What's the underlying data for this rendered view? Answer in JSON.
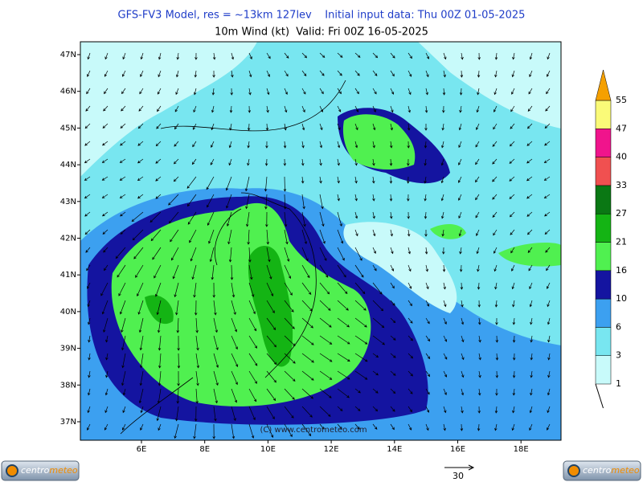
{
  "header": {
    "title": "GFS-FV3 Model, res = ~13km 127lev    Initial input data: Thu 00Z 01-05-2025",
    "subtitle": "10m Wind (kt)  Valid: Fri 00Z 16-05-2025"
  },
  "map": {
    "lat_labels": [
      "47N",
      "46N",
      "45N",
      "44N",
      "43N",
      "42N",
      "41N",
      "40N",
      "39N",
      "38N",
      "37N"
    ],
    "lon_labels": [
      "6E",
      "8E",
      "10E",
      "12E",
      "14E",
      "16E",
      "18E"
    ],
    "copyright": "(C) www.centrometeo.com"
  },
  "colorbar": {
    "levels": [
      1,
      3,
      6,
      10,
      16,
      21,
      27,
      33,
      40,
      47,
      55
    ],
    "colors": [
      "#c8fafa",
      "#78e6f0",
      "#3ca0f0",
      "#1414a0",
      "#50f050",
      "#14b414",
      "#0a7814",
      "#f05050",
      "#f0148c",
      "#fafa78",
      "#f5a000"
    ]
  },
  "wind_scale": {
    "label": "30"
  },
  "logos": {
    "left": [
      "centro",
      "meteo"
    ],
    "right": [
      "centro",
      "meteo"
    ]
  }
}
